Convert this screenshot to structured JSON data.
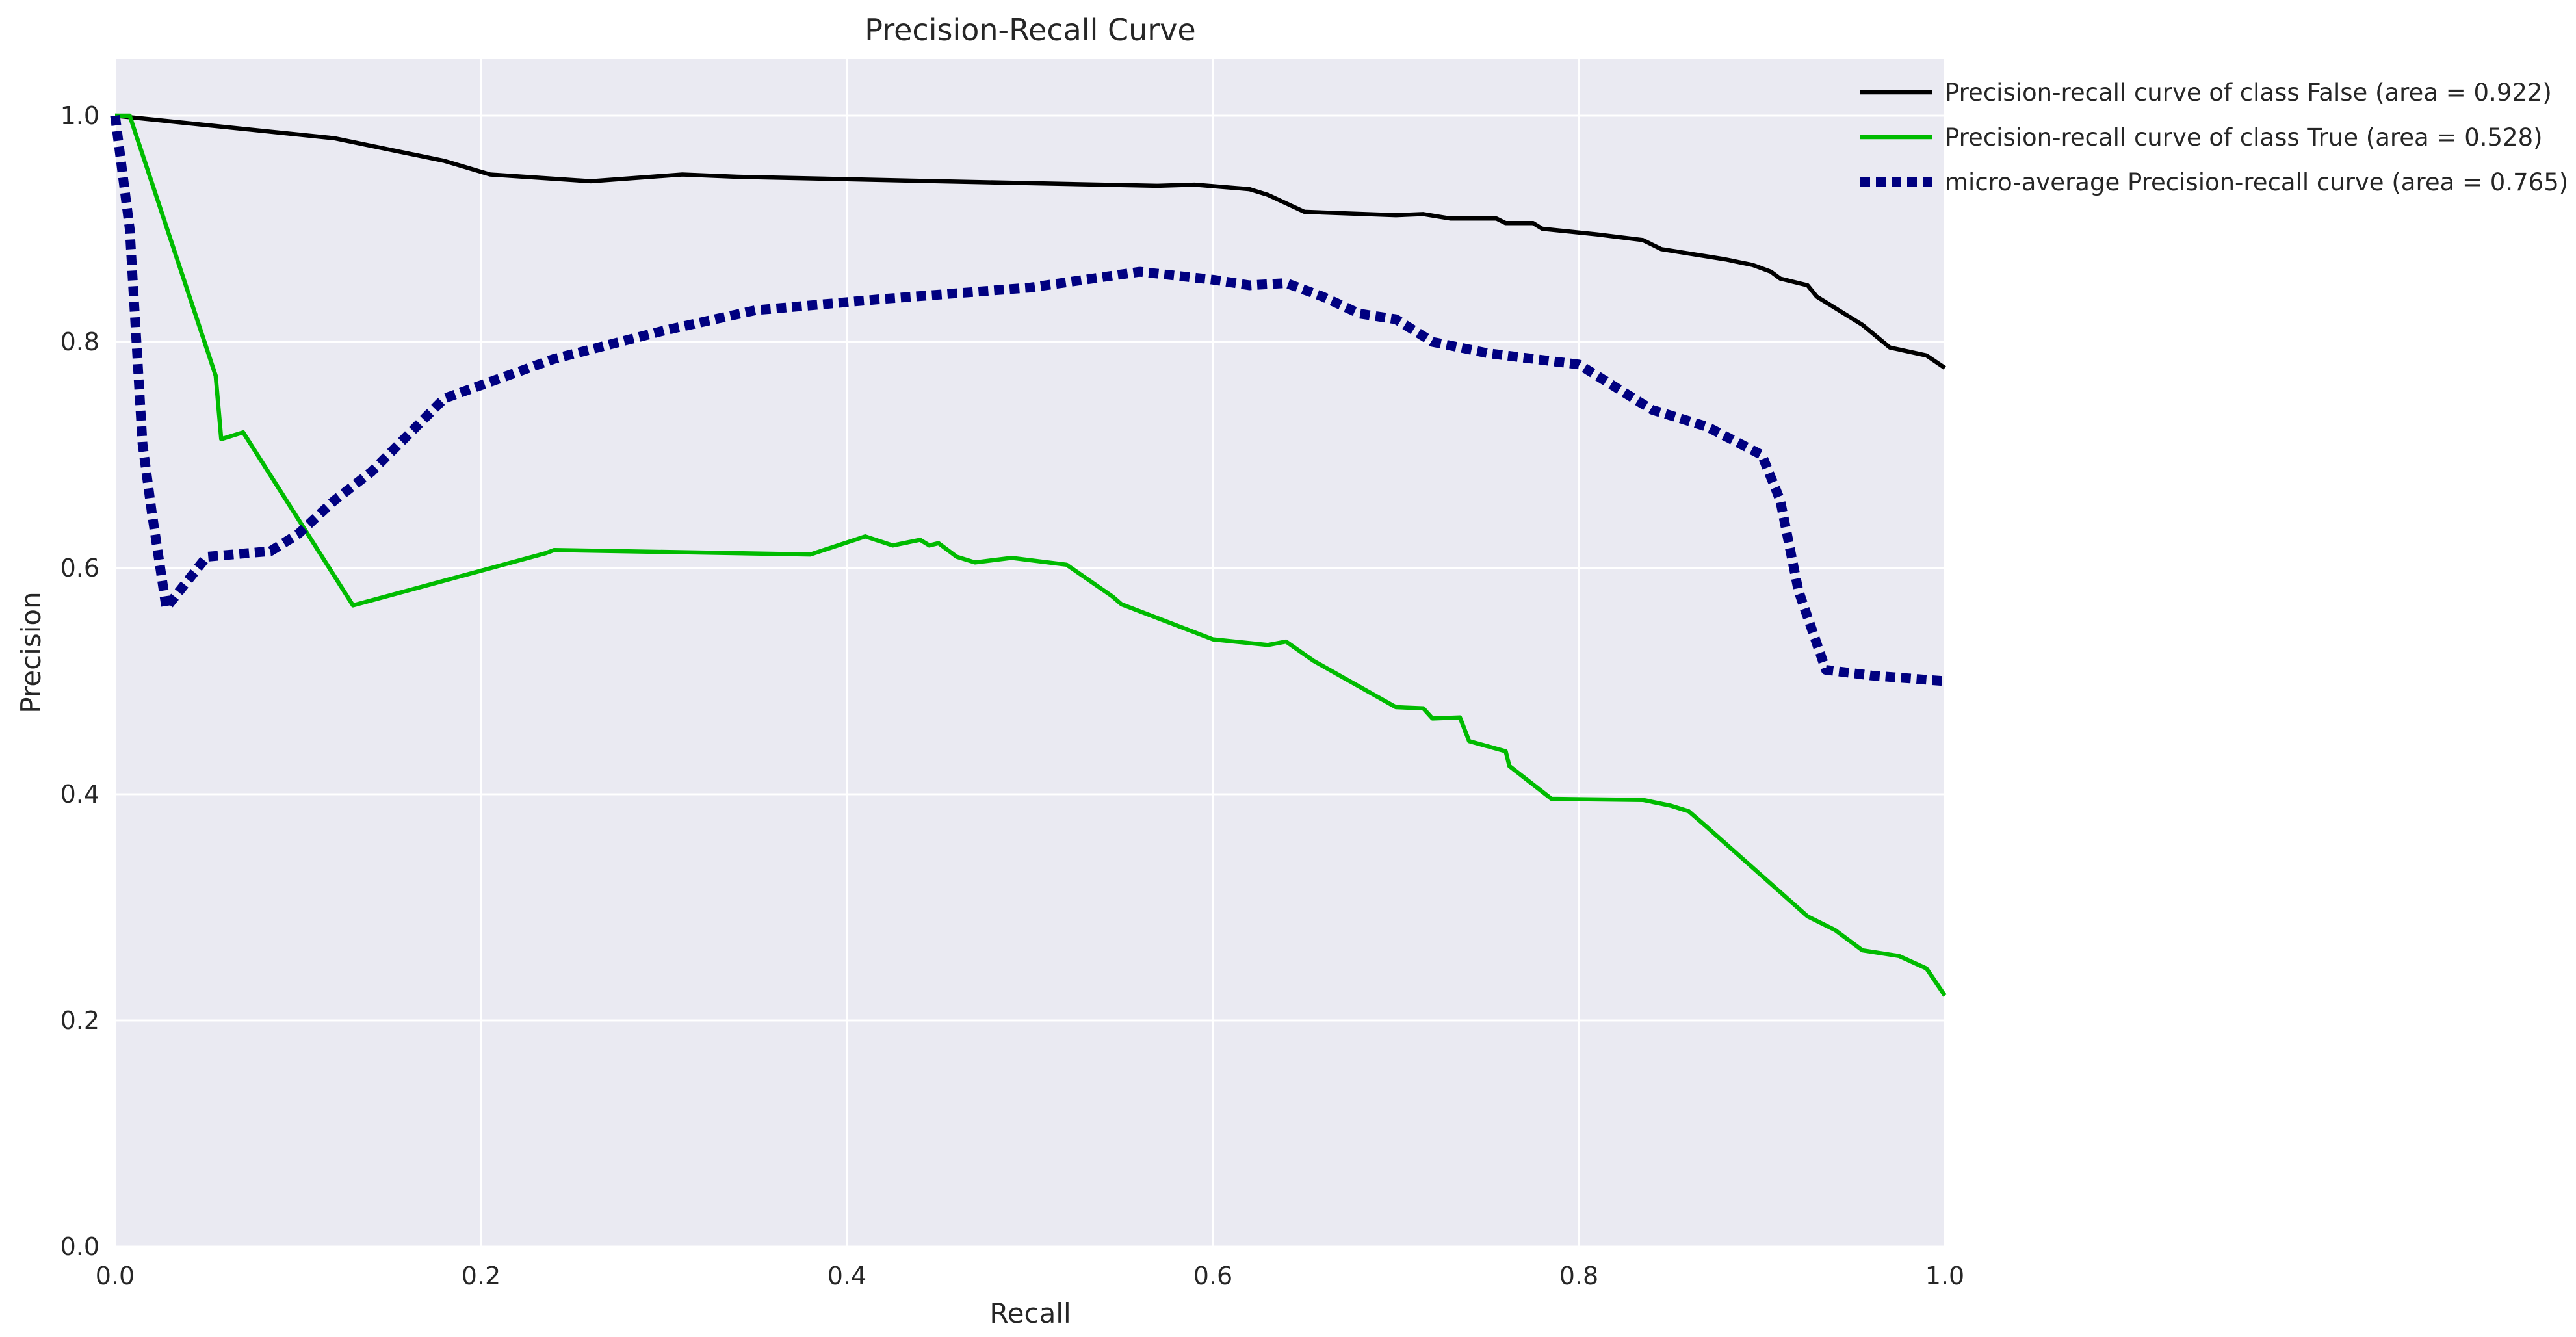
{
  "chart_data": {
    "type": "line",
    "title": "Precision-Recall Curve",
    "xlabel": "Recall",
    "ylabel": "Precision",
    "xlim": [
      0.0,
      1.0
    ],
    "ylim": [
      0.0,
      1.05
    ],
    "xticks": [
      "0.0",
      "0.2",
      "0.4",
      "0.6",
      "0.8",
      "1.0"
    ],
    "yticks": [
      "0.0",
      "0.2",
      "0.4",
      "0.6",
      "0.8",
      "1.0"
    ],
    "grid": true,
    "legend_position": "outside-top-right",
    "background": "#EAEAF2",
    "series": [
      {
        "name": "Precision-recall curve of class False (area = 0.922)",
        "color": "#000000",
        "style": "solid",
        "points": [
          [
            0.0,
            1.0
          ],
          [
            0.06,
            0.99
          ],
          [
            0.12,
            0.98
          ],
          [
            0.18,
            0.96
          ],
          [
            0.205,
            0.948
          ],
          [
            0.26,
            0.942
          ],
          [
            0.31,
            0.948
          ],
          [
            0.34,
            0.946
          ],
          [
            0.45,
            0.942
          ],
          [
            0.57,
            0.938
          ],
          [
            0.59,
            0.939
          ],
          [
            0.605,
            0.937
          ],
          [
            0.62,
            0.935
          ],
          [
            0.63,
            0.93
          ],
          [
            0.65,
            0.915
          ],
          [
            0.7,
            0.912
          ],
          [
            0.715,
            0.913
          ],
          [
            0.73,
            0.909
          ],
          [
            0.755,
            0.909
          ],
          [
            0.76,
            0.905
          ],
          [
            0.775,
            0.905
          ],
          [
            0.78,
            0.9
          ],
          [
            0.81,
            0.895
          ],
          [
            0.835,
            0.89
          ],
          [
            0.845,
            0.882
          ],
          [
            0.88,
            0.873
          ],
          [
            0.895,
            0.868
          ],
          [
            0.905,
            0.862
          ],
          [
            0.91,
            0.856
          ],
          [
            0.925,
            0.85
          ],
          [
            0.93,
            0.84
          ],
          [
            0.955,
            0.815
          ],
          [
            0.97,
            0.795
          ],
          [
            0.99,
            0.788
          ],
          [
            1.0,
            0.777
          ]
        ]
      },
      {
        "name": "Precision-recall curve of class True (area = 0.528)",
        "color": "#00BB00",
        "style": "solid",
        "points": [
          [
            0.0,
            1.0
          ],
          [
            0.008,
            1.0
          ],
          [
            0.055,
            0.77
          ],
          [
            0.058,
            0.714
          ],
          [
            0.07,
            0.72
          ],
          [
            0.13,
            0.567
          ],
          [
            0.235,
            0.613
          ],
          [
            0.24,
            0.616
          ],
          [
            0.38,
            0.612
          ],
          [
            0.41,
            0.628
          ],
          [
            0.425,
            0.62
          ],
          [
            0.44,
            0.625
          ],
          [
            0.445,
            0.62
          ],
          [
            0.45,
            0.622
          ],
          [
            0.46,
            0.61
          ],
          [
            0.47,
            0.605
          ],
          [
            0.49,
            0.609
          ],
          [
            0.52,
            0.603
          ],
          [
            0.545,
            0.575
          ],
          [
            0.55,
            0.568
          ],
          [
            0.6,
            0.537
          ],
          [
            0.63,
            0.532
          ],
          [
            0.64,
            0.535
          ],
          [
            0.655,
            0.518
          ],
          [
            0.7,
            0.477
          ],
          [
            0.715,
            0.476
          ],
          [
            0.72,
            0.467
          ],
          [
            0.735,
            0.468
          ],
          [
            0.74,
            0.447
          ],
          [
            0.76,
            0.438
          ],
          [
            0.762,
            0.425
          ],
          [
            0.785,
            0.396
          ],
          [
            0.835,
            0.395
          ],
          [
            0.85,
            0.39
          ],
          [
            0.86,
            0.385
          ],
          [
            0.87,
            0.371
          ],
          [
            0.925,
            0.292
          ],
          [
            0.94,
            0.28
          ],
          [
            0.955,
            0.262
          ],
          [
            0.975,
            0.257
          ],
          [
            0.99,
            0.246
          ],
          [
            1.0,
            0.222
          ]
        ]
      },
      {
        "name": "micro-average Precision-recall curve (area = 0.765)",
        "color": "#000080",
        "style": "dotted",
        "points": [
          [
            0.0,
            1.0
          ],
          [
            0.008,
            0.9
          ],
          [
            0.015,
            0.71
          ],
          [
            0.02,
            0.65
          ],
          [
            0.028,
            0.565
          ],
          [
            0.05,
            0.61
          ],
          [
            0.085,
            0.615
          ],
          [
            0.1,
            0.63
          ],
          [
            0.12,
            0.66
          ],
          [
            0.14,
            0.685
          ],
          [
            0.18,
            0.75
          ],
          [
            0.24,
            0.785
          ],
          [
            0.3,
            0.81
          ],
          [
            0.35,
            0.828
          ],
          [
            0.42,
            0.838
          ],
          [
            0.5,
            0.848
          ],
          [
            0.56,
            0.862
          ],
          [
            0.6,
            0.855
          ],
          [
            0.62,
            0.85
          ],
          [
            0.64,
            0.852
          ],
          [
            0.66,
            0.84
          ],
          [
            0.68,
            0.825
          ],
          [
            0.7,
            0.82
          ],
          [
            0.72,
            0.8
          ],
          [
            0.75,
            0.79
          ],
          [
            0.8,
            0.78
          ],
          [
            0.84,
            0.74
          ],
          [
            0.87,
            0.725
          ],
          [
            0.9,
            0.7
          ],
          [
            0.91,
            0.66
          ],
          [
            0.92,
            0.58
          ],
          [
            0.935,
            0.51
          ],
          [
            0.96,
            0.505
          ],
          [
            1.0,
            0.5
          ]
        ]
      }
    ]
  }
}
